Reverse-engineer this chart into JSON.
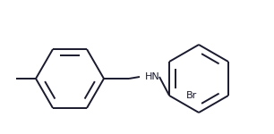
{
  "bg_color": "#ffffff",
  "line_color": "#1a1a2e",
  "line_width": 1.4,
  "figsize": [
    3.06,
    1.5
  ],
  "dpi": 100,
  "nh_label": "HN",
  "br_label": "Br",
  "label_fontsize": 8.0
}
